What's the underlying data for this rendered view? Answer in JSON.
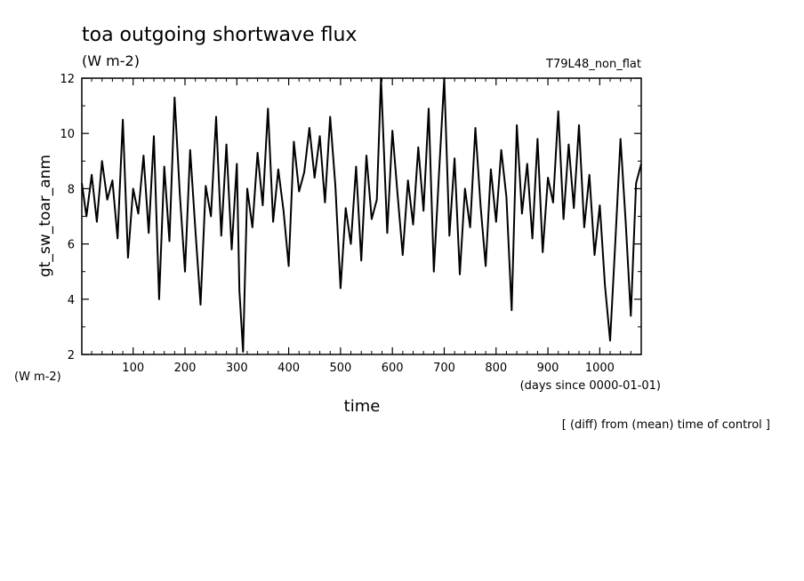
{
  "header": {
    "title": "toa outgoing shortwave flux",
    "units": "(W m-2)",
    "run_label": "T79L48_non_flat",
    "y_units_lower": "(W m-2)",
    "x_units": "(days since 0000-01-01)",
    "footnote": "[ (diff) from (mean) time of control ]"
  },
  "chart_data": {
    "type": "line",
    "title": "toa outgoing shortwave flux",
    "xlabel": "time",
    "ylabel": "gt_sw_toar_anm",
    "xlim": [
      1,
      1080
    ],
    "ylim": [
      2,
      12
    ],
    "x_ticks": [
      100,
      200,
      300,
      400,
      500,
      600,
      700,
      800,
      900,
      1000
    ],
    "y_ticks": [
      2,
      4,
      6,
      8,
      10,
      12
    ],
    "grid": false,
    "line_color": "#000000",
    "series": [
      {
        "x": [
          1,
          10,
          20,
          30,
          40,
          50,
          60,
          70,
          80,
          90,
          100,
          110,
          120,
          130,
          140,
          150,
          160,
          170,
          180,
          190,
          200,
          210,
          220,
          230,
          240,
          250,
          260,
          270,
          280,
          290,
          300,
          305,
          312,
          320,
          330,
          340,
          350,
          360,
          370,
          380,
          390,
          400,
          410,
          420,
          430,
          440,
          450,
          460,
          470,
          480,
          490,
          500,
          510,
          520,
          530,
          540,
          550,
          560,
          570,
          578,
          590,
          600,
          610,
          620,
          630,
          640,
          650,
          660,
          670,
          680,
          690,
          700,
          710,
          720,
          730,
          740,
          750,
          760,
          770,
          780,
          790,
          800,
          810,
          820,
          830,
          840,
          850,
          860,
          870,
          880,
          890,
          900,
          910,
          920,
          930,
          940,
          950,
          960,
          970,
          980,
          990,
          1000,
          1010,
          1020,
          1030,
          1040,
          1050,
          1060,
          1070,
          1080
        ],
        "values": [
          8.2,
          7.0,
          8.5,
          6.8,
          9.0,
          7.6,
          8.3,
          6.2,
          10.5,
          5.5,
          8.0,
          7.1,
          9.2,
          6.4,
          9.9,
          4.0,
          8.8,
          6.1,
          11.3,
          7.8,
          5.0,
          9.4,
          6.5,
          3.8,
          8.1,
          7.0,
          10.6,
          6.3,
          9.6,
          5.8,
          8.9,
          4.3,
          2.1,
          8.0,
          6.6,
          9.3,
          7.4,
          10.9,
          6.8,
          8.7,
          7.2,
          5.2,
          9.7,
          7.9,
          8.6,
          10.2,
          8.4,
          9.9,
          7.5,
          10.6,
          8.1,
          4.4,
          7.3,
          6.0,
          8.8,
          5.4,
          9.2,
          6.9,
          7.6,
          12.0,
          6.4,
          10.1,
          7.8,
          5.6,
          8.3,
          6.7,
          9.5,
          7.2,
          10.9,
          5.0,
          8.6,
          12.0,
          6.3,
          9.1,
          4.9,
          8.0,
          6.6,
          10.2,
          7.4,
          5.2,
          8.7,
          6.8,
          9.4,
          7.7,
          3.6,
          10.3,
          7.1,
          8.9,
          6.2,
          9.8,
          5.7,
          8.4,
          7.5,
          10.8,
          6.9,
          9.6,
          7.3,
          10.3,
          6.6,
          8.5,
          5.6,
          7.4,
          4.5,
          2.5,
          6.1,
          9.8,
          6.8,
          3.4,
          8.2,
          8.9
        ]
      }
    ]
  }
}
